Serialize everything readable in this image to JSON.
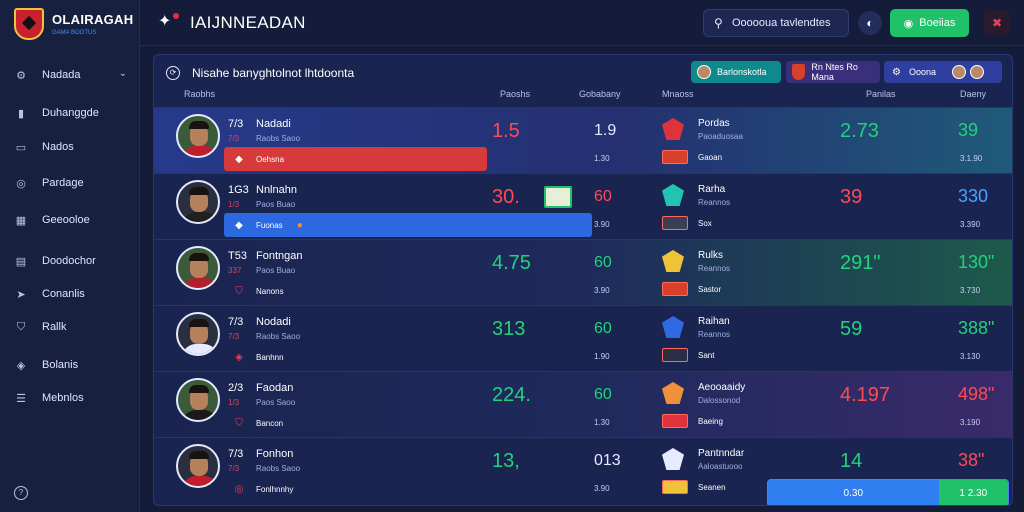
{
  "brand": {
    "name": "OLAIRAGAH",
    "sub": "GAMA BOOTUS"
  },
  "sidebar": {
    "items": [
      {
        "label": "Nadada",
        "icon": "gear-icon",
        "glyph": "⚙",
        "has_chevron": true
      },
      {
        "label": "Duhanggde",
        "icon": "bar-chart-icon",
        "glyph": "▮"
      },
      {
        "label": "Nados",
        "icon": "folder-icon",
        "glyph": "▭"
      },
      {
        "label": "Pardage",
        "icon": "target-icon",
        "glyph": "◎"
      },
      {
        "label": "Geeooloe",
        "icon": "grid-icon",
        "glyph": "▦"
      },
      {
        "label": "Doodochor",
        "icon": "document-icon",
        "glyph": "▤"
      },
      {
        "label": "Conanlis",
        "icon": "arrow-icon",
        "glyph": "➤"
      },
      {
        "label": "Rallk",
        "icon": "shield-icon",
        "glyph": "⛉"
      },
      {
        "label": "Bolanis",
        "icon": "tag-icon",
        "glyph": "◈"
      },
      {
        "label": "Mebnlos",
        "icon": "list-icon",
        "glyph": "☰"
      }
    ],
    "chevron": "⌄",
    "help": "?"
  },
  "topbar": {
    "title": "IAIJNNEADAN",
    "logo_glyph": "✦",
    "search_label": "Oooooua tavlendtes",
    "search_glyph": "⚲",
    "toggle_glyph": "◐",
    "primary_button": "Boeiias",
    "primary_glyph": "◉",
    "alert_glyph": "✖"
  },
  "panel": {
    "title": "Nisahe banyghtolnot lhtdoonta",
    "head_glyph": "⟳",
    "chips": [
      {
        "label": "Barlonskotla"
      },
      {
        "label": "Rn Ntes Ro Mana"
      },
      {
        "label": "Ooona"
      }
    ],
    "columns": [
      "Raobhs",
      "Paoshs",
      "Gobabany",
      "Mnaoss",
      "Panilas",
      "Daeny"
    ]
  },
  "rows": [
    {
      "code": "7/3",
      "name": "Nadadi",
      "sub1": "7/3",
      "sub2": "Raobs Saoo",
      "bar_label": "Oehsna",
      "bar_glyph": "◆",
      "bar_color": "#d63a3a",
      "bar_fill": 0.65,
      "bar_badge": "",
      "big": "1.5",
      "big_color": "#ff4a55",
      "mid": "1.9",
      "mid_color": "#e6ebff",
      "tiny": "1.30",
      "team": "Pordas",
      "team_sub": "Paoaduosaa",
      "flag_label": "Gaoan",
      "stat1": "2.73",
      "stat1_color": "#22d27a",
      "stat2": "39",
      "stat2_color": "#22d27a",
      "stat_sub": "3.1.90",
      "shirt": "#c21d2a",
      "crest": "#e0323d",
      "flag": "#d8402a",
      "tint": "#1f5a7a"
    },
    {
      "code": "1G3",
      "name": "Nnlnahn",
      "sub1": "1/3",
      "sub2": "Paos Buao",
      "bar_label": "Fuonas",
      "bar_glyph": "◆",
      "bar_color": "#2c68e0",
      "bar_fill": 0.91,
      "bar_badge": "●",
      "big": "30.",
      "big_color": "#ff4a55",
      "mid": "60",
      "mid_color": "#ff4a55",
      "tiny": "3.90",
      "team": "Rarha",
      "team_sub": "Reannos",
      "flag_label": "Sox",
      "stat1": "39",
      "stat1_color": "#ff4a55",
      "stat2": "330",
      "stat2_color": "#4aa3ff",
      "stat_sub": "3.390",
      "shirt": "#202020",
      "crest": "#22c3b0",
      "flag": "#3a3f55",
      "tint": ""
    },
    {
      "code": "T53",
      "name": "Fontngan",
      "sub1": "337",
      "sub2": "Paos Buao",
      "bar_label": "Nanons",
      "bar_glyph": "⛉",
      "bar_color": "",
      "bar_fill": 0,
      "bar_badge": "",
      "big": "4.75",
      "big_color": "#22d27a",
      "mid": "60",
      "mid_color": "#22d27a",
      "tiny": "3.90",
      "team": "Rulks",
      "team_sub": "Reannos",
      "flag_label": "Sastor",
      "stat1": "291\"",
      "stat1_color": "#22d27a",
      "stat2": "130\"",
      "stat2_color": "#22d27a",
      "stat_sub": "3.730",
      "shirt": "#b3202c",
      "crest": "#f0c23a",
      "flag": "#d8402a",
      "tint": "#1d5a4a"
    },
    {
      "code": "7/3",
      "name": "Nodadi",
      "sub1": "7/3",
      "sub2": "Raobs Saoo",
      "bar_label": "Banhnn",
      "bar_glyph": "◈",
      "bar_color": "",
      "bar_fill": 0,
      "bar_badge": "",
      "big": "313",
      "big_color": "#22d27a",
      "mid": "60",
      "mid_color": "#22d27a",
      "tiny": "1.90",
      "team": "Raihan",
      "team_sub": "Reannos",
      "flag_label": "Sant",
      "stat1": "59",
      "stat1_color": "#22d27a",
      "stat2": "388\"",
      "stat2_color": "#22d27a",
      "stat_sub": "3.130",
      "shirt": "#e6ebff",
      "crest": "#2f6ae0",
      "flag": "#2a2f45",
      "tint": ""
    },
    {
      "code": "2/3",
      "name": "Faodan",
      "sub1": "1/3",
      "sub2": "Paos Saoo",
      "bar_label": "Bancon",
      "bar_glyph": "⛉",
      "bar_color": "",
      "bar_fill": 0,
      "bar_badge": "",
      "big": "224.",
      "big_color": "#22d27a",
      "mid": "60",
      "mid_color": "#22d27a",
      "tiny": "1.30",
      "team": "Aeooaaidy",
      "team_sub": "Dalossonod",
      "flag_label": "Baeing",
      "stat1": "4.197",
      "stat1_color": "#ff4a55",
      "stat2": "498\"",
      "stat2_color": "#ff4a55",
      "stat_sub": "3.190",
      "shirt": "#1a1a1a",
      "crest": "#f0903a",
      "flag": "#e0323d",
      "tint": "#3a2a6a"
    },
    {
      "code": "7/3",
      "name": "Fonhon",
      "sub1": "7/3",
      "sub2": "Raobs Saoo",
      "bar_label": "Fonlhnnhy",
      "bar_glyph": "◎",
      "bar_color": "",
      "bar_fill": 0,
      "bar_badge": "",
      "big": "13,",
      "big_color": "#22d27a",
      "mid": "013",
      "mid_color": "#e6ebff",
      "tiny": "3.90",
      "team": "Pantnndar",
      "team_sub": "Aaloastuooo",
      "flag_label": "Seanen",
      "stat1": "14",
      "stat1_color": "#22d27a",
      "stat2": "38\"",
      "stat2_color": "#ff4a55",
      "stat_sub": "",
      "shirt": "#c21d2a",
      "crest": "#e6ebff",
      "flag": "#f0c23a",
      "tint": ""
    }
  ],
  "footer_bar": {
    "left": "0.30",
    "right": "1 2.30"
  }
}
